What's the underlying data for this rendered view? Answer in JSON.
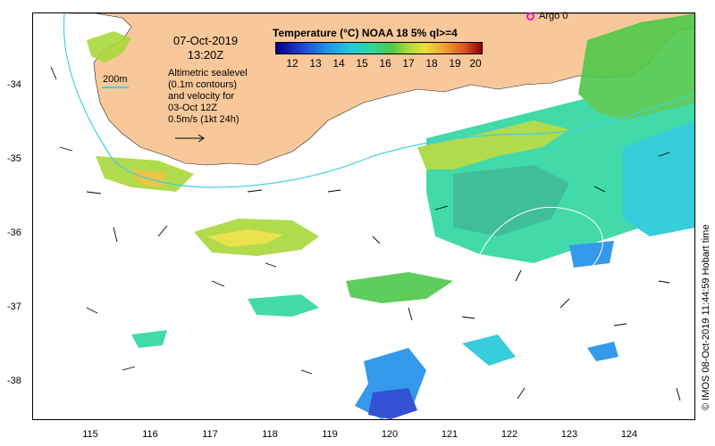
{
  "map": {
    "title_date": "07-Oct-2019",
    "title_time": "13:20Z",
    "colorbar_title": "Temperature (°C) NOAA 18 5% ql>=4",
    "colorbar_ticks": [
      "12",
      "13",
      "14",
      "15",
      "16",
      "17",
      "18",
      "19",
      "20"
    ],
    "colorbar_colors": [
      "#000080",
      "#1f8fe8",
      "#2ed6a0",
      "#4ec84a",
      "#e8e03a",
      "#f0a030",
      "#900000"
    ],
    "contour_label": "200m",
    "info_lines": [
      "Altimetric sealevel",
      "(0.1m contours)",
      "and velocity for",
      "03-Oct 12Z",
      "0.5m/s (1kt 24h)"
    ],
    "argo_label": "Argo 0",
    "credit": "© IMOS 08-Oct-2019 11:44:59 Hobart time",
    "y_ticks": [
      "-34",
      "-35",
      "-36",
      "-37",
      "-38"
    ],
    "x_ticks": [
      "115",
      "116",
      "117",
      "118",
      "119",
      "120",
      "121",
      "122",
      "123",
      "124"
    ],
    "land_color": "#f9c89a",
    "contour_color": "#40d0e0"
  }
}
